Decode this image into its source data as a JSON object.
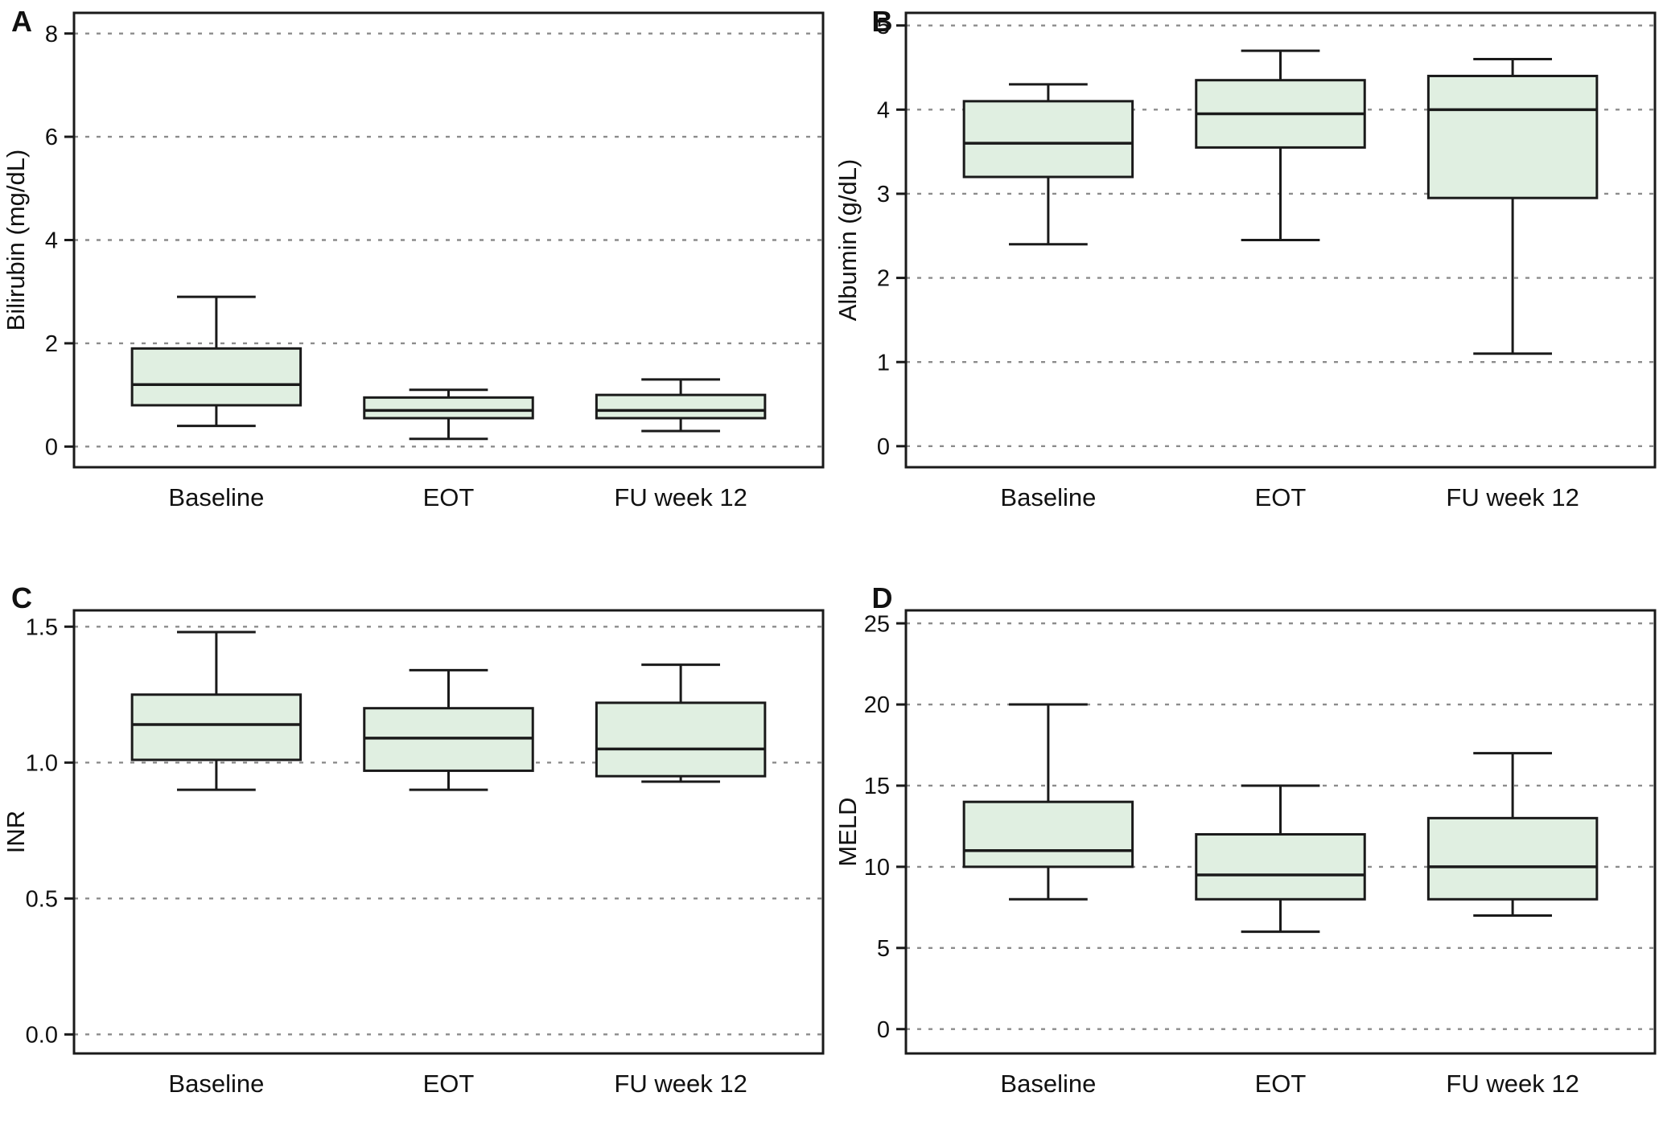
{
  "colors": {
    "box_fill": "#e0efe1",
    "stroke": "#1a1a1a",
    "grid": "#8c8c8c",
    "background": "#ffffff",
    "text": "#111111"
  },
  "chart_data": [
    {
      "type": "box",
      "panel": "A",
      "title": "",
      "ylabel": "Bilirubin (mg/dL)",
      "xlabel": "",
      "categories": [
        "Baseline",
        "EOT",
        "FU week 12"
      ],
      "ytick_values": [
        0,
        2,
        4,
        6,
        8
      ],
      "ytick_labels": [
        "0",
        "2",
        "4",
        "6",
        "8"
      ],
      "ylim": [
        -0.4,
        8.4
      ],
      "grid": "dashed-horizontal",
      "legend": "none",
      "boxes": [
        {
          "category": "Baseline",
          "whisker_low": 0.4,
          "q1": 0.8,
          "median": 1.2,
          "q3": 1.9,
          "whisker_high": 2.9
        },
        {
          "category": "EOT",
          "whisker_low": 0.15,
          "q1": 0.55,
          "median": 0.7,
          "q3": 0.95,
          "whisker_high": 1.1
        },
        {
          "category": "FU week 12",
          "whisker_low": 0.3,
          "q1": 0.55,
          "median": 0.7,
          "q3": 1.0,
          "whisker_high": 1.3
        }
      ]
    },
    {
      "type": "box",
      "panel": "B",
      "title": "",
      "ylabel": "Albumin (g/dL)",
      "xlabel": "",
      "categories": [
        "Baseline",
        "EOT",
        "FU week 12"
      ],
      "ytick_values": [
        0,
        1,
        2,
        3,
        4,
        5
      ],
      "ytick_labels": [
        "0",
        "1",
        "2",
        "3",
        "4",
        "5"
      ],
      "ylim": [
        -0.25,
        5.15
      ],
      "grid": "dashed-horizontal",
      "legend": "none",
      "boxes": [
        {
          "category": "Baseline",
          "whisker_low": 2.4,
          "q1": 3.2,
          "median": 3.6,
          "q3": 4.1,
          "whisker_high": 4.3
        },
        {
          "category": "EOT",
          "whisker_low": 2.45,
          "q1": 3.55,
          "median": 3.95,
          "q3": 4.35,
          "whisker_high": 4.7
        },
        {
          "category": "FU week 12",
          "whisker_low": 1.1,
          "q1": 2.95,
          "median": 4.0,
          "q3": 4.4,
          "whisker_high": 4.6
        }
      ]
    },
    {
      "type": "box",
      "panel": "C",
      "title": "",
      "ylabel": "INR",
      "xlabel": "",
      "categories": [
        "Baseline",
        "EOT",
        "FU week 12"
      ],
      "ytick_values": [
        0.0,
        0.5,
        1.0,
        1.5
      ],
      "ytick_labels": [
        "0.0",
        "0.5",
        "1.0",
        "1.5"
      ],
      "ylim": [
        -0.07,
        1.56
      ],
      "grid": "dashed-horizontal",
      "legend": "none",
      "boxes": [
        {
          "category": "Baseline",
          "whisker_low": 0.9,
          "q1": 1.01,
          "median": 1.14,
          "q3": 1.25,
          "whisker_high": 1.48
        },
        {
          "category": "EOT",
          "whisker_low": 0.9,
          "q1": 0.97,
          "median": 1.09,
          "q3": 1.2,
          "whisker_high": 1.34
        },
        {
          "category": "FU week 12",
          "whisker_low": 0.93,
          "q1": 0.95,
          "median": 1.05,
          "q3": 1.22,
          "whisker_high": 1.36
        }
      ]
    },
    {
      "type": "box",
      "panel": "D",
      "title": "",
      "ylabel": "MELD",
      "xlabel": "",
      "categories": [
        "Baseline",
        "EOT",
        "FU week 12"
      ],
      "ytick_values": [
        0,
        5,
        10,
        15,
        20,
        25
      ],
      "ytick_labels": [
        "0",
        "5",
        "10",
        "15",
        "20",
        "25"
      ],
      "ylim": [
        -1.5,
        25.8
      ],
      "grid": "dashed-horizontal",
      "legend": "none",
      "boxes": [
        {
          "category": "Baseline",
          "whisker_low": 8,
          "q1": 10,
          "median": 11,
          "q3": 14,
          "whisker_high": 20
        },
        {
          "category": "EOT",
          "whisker_low": 6,
          "q1": 8,
          "median": 9.5,
          "q3": 12,
          "whisker_high": 15
        },
        {
          "category": "FU week 12",
          "whisker_low": 7,
          "q1": 8,
          "median": 10,
          "q3": 13,
          "whisker_high": 17
        }
      ]
    }
  ]
}
